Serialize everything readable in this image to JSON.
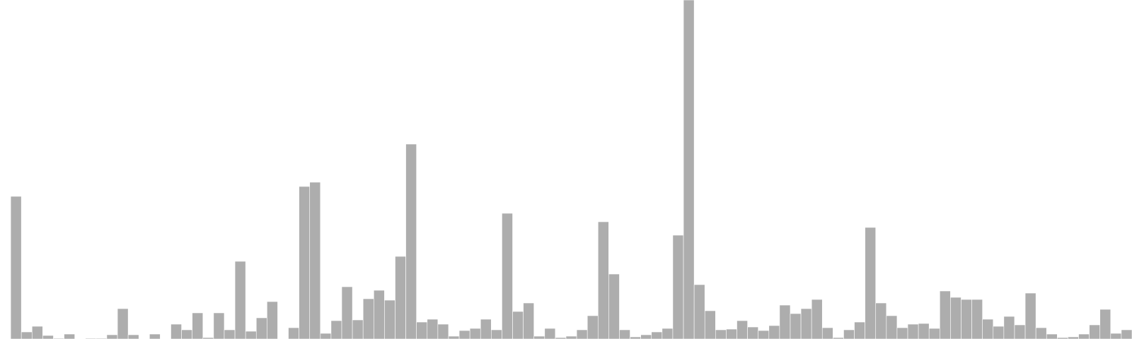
{
  "chart_data": {
    "type": "bar",
    "bar_color": "#adadad",
    "background": "#ffffff",
    "grid": false,
    "axes_visible": false,
    "title": "",
    "xlabel": "",
    "ylabel": "",
    "ylim": [
      0,
      480
    ],
    "values": [
      0,
      202,
      10,
      18,
      5,
      1,
      7,
      0,
      1,
      1,
      6,
      43,
      6,
      0,
      7,
      0,
      21,
      13,
      37,
      2,
      37,
      13,
      110,
      11,
      30,
      53,
      0,
      16,
      216,
      222,
      8,
      26,
      74,
      27,
      57,
      69,
      55,
      117,
      276,
      24,
      28,
      21,
      4,
      12,
      15,
      28,
      13,
      178,
      39,
      51,
      4,
      15,
      2,
      4,
      13,
      33,
      166,
      92,
      13,
      3,
      6,
      10,
      15,
      147,
      480,
      77,
      40,
      13,
      14,
      26,
      17,
      12,
      19,
      48,
      36,
      43,
      56,
      16,
      2,
      13,
      24,
      158,
      51,
      33,
      16,
      21,
      22,
      15,
      68,
      59,
      56,
      56,
      28,
      18,
      32,
      20,
      65,
      16,
      7,
      2,
      3,
      7,
      20,
      42,
      8,
      13
    ]
  }
}
